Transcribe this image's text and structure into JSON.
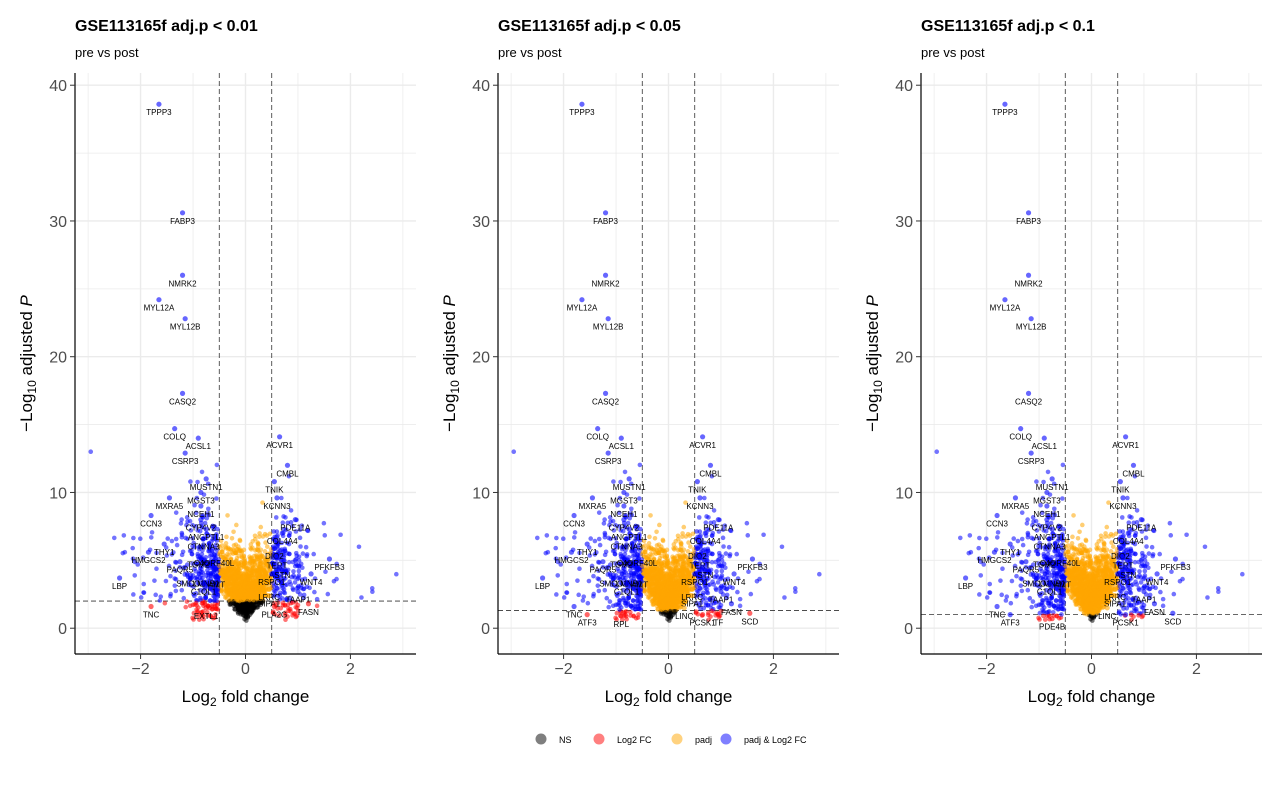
{
  "chart_data": [
    {
      "type": "scatter",
      "title": "GSE113165f adj.p < 0.01",
      "subtitle": "pre vs post",
      "xlabel": "Log2 fold change",
      "ylabel": "−Log10 adjusted P",
      "xlim": [
        -3.25,
        3.25
      ],
      "ylim": [
        -1.9,
        40.9
      ],
      "xticks": [
        -2,
        0,
        2
      ],
      "yticks": [
        0,
        10,
        20,
        30,
        40
      ],
      "fc_cutoff": 0.5,
      "p_cutoff_log10": 2.0,
      "grid": true,
      "labeled_genes": [
        {
          "gene": "TPPP3",
          "x": -1.65,
          "y": 38.6
        },
        {
          "gene": "FABP3",
          "x": -1.2,
          "y": 30.6
        },
        {
          "gene": "NMRK2",
          "x": -1.2,
          "y": 26.0
        },
        {
          "gene": "MYL12A",
          "x": -1.65,
          "y": 24.2
        },
        {
          "gene": "MYL12B",
          "x": -1.15,
          "y": 22.8
        },
        {
          "gene": "CASQ2",
          "x": -1.2,
          "y": 17.3
        },
        {
          "gene": "COLQ",
          "x": -1.35,
          "y": 14.7
        },
        {
          "gene": "ACSL1",
          "x": -0.9,
          "y": 14.0
        },
        {
          "gene": "CSRP3",
          "x": -1.15,
          "y": 12.9
        },
        {
          "gene": "MUSTN1",
          "x": -0.75,
          "y": 11.0
        },
        {
          "gene": "MGST3",
          "x": -0.85,
          "y": 10.0
        },
        {
          "gene": "MXRA5",
          "x": -1.45,
          "y": 9.6
        },
        {
          "gene": "NCEH1",
          "x": -0.85,
          "y": 9.0
        },
        {
          "gene": "CCN3",
          "x": -1.8,
          "y": 8.3
        },
        {
          "gene": "CYP4V2",
          "x": -0.85,
          "y": 8.0
        },
        {
          "gene": "ANGPTL1",
          "x": -0.75,
          "y": 7.3
        },
        {
          "gene": "CTNNA3",
          "x": -0.8,
          "y": 6.6
        },
        {
          "gene": "THY1",
          "x": -1.55,
          "y": 6.2
        },
        {
          "gene": "HMGCS2",
          "x": -1.85,
          "y": 5.6
        },
        {
          "gene": "TGM2",
          "x": -0.9,
          "y": 5.3
        },
        {
          "gene": "C4ORF40L",
          "x": -0.6,
          "y": 5.4
        },
        {
          "gene": "PAQR5",
          "x": -1.25,
          "y": 4.9
        },
        {
          "gene": "SMCO1",
          "x": -1.05,
          "y": 3.9
        },
        {
          "gene": "LMNB1",
          "x": -0.75,
          "y": 3.9
        },
        {
          "gene": "AMT",
          "x": -0.55,
          "y": 3.8
        },
        {
          "gene": "C1QL1",
          "x": -0.8,
          "y": 3.3
        },
        {
          "gene": "LBP",
          "x": -2.4,
          "y": 3.7
        },
        {
          "gene": "TNC",
          "x": -1.8,
          "y": 1.6
        },
        {
          "gene": "EXTL1",
          "x": -0.75,
          "y": 1.5
        },
        {
          "gene": "ACVR1",
          "x": 0.65,
          "y": 14.1
        },
        {
          "gene": "CMBL",
          "x": 0.8,
          "y": 12.0
        },
        {
          "gene": "TNIK",
          "x": 0.55,
          "y": 10.8
        },
        {
          "gene": "KCNN3",
          "x": 0.6,
          "y": 9.6
        },
        {
          "gene": "PDE11A",
          "x": 0.95,
          "y": 8.0
        },
        {
          "gene": "COL4A4",
          "x": 0.7,
          "y": 7.0
        },
        {
          "gene": "DIO2",
          "x": 0.55,
          "y": 5.9
        },
        {
          "gene": "TERT",
          "x": 0.6,
          "y": 5.2
        },
        {
          "gene": "ASTN",
          "x": 0.65,
          "y": 4.5
        },
        {
          "gene": "PFKFB3",
          "x": 1.6,
          "y": 5.1
        },
        {
          "gene": "WNT4",
          "x": 1.25,
          "y": 4.0
        },
        {
          "gene": "RSPO1",
          "x": 0.5,
          "y": 4.0
        },
        {
          "gene": "LRRC",
          "x": 0.45,
          "y": 2.9
        },
        {
          "gene": "SIPA1",
          "x": 0.45,
          "y": 2.4
        },
        {
          "gene": "TAAP1",
          "x": 1.0,
          "y": 2.7
        },
        {
          "gene": "FASN",
          "x": 1.2,
          "y": 1.8
        },
        {
          "gene": "PLA2G",
          "x": 0.55,
          "y": 1.6
        }
      ]
    },
    {
      "type": "scatter",
      "title": "GSE113165f adj.p < 0.05",
      "subtitle": "pre vs post",
      "xlabel": "Log2 fold change",
      "ylabel": "−Log10 adjusted P",
      "xlim": [
        -3.25,
        3.25
      ],
      "ylim": [
        -1.9,
        40.9
      ],
      "xticks": [
        -2,
        0,
        2
      ],
      "yticks": [
        0,
        10,
        20,
        30,
        40
      ],
      "fc_cutoff": 0.5,
      "p_cutoff_log10": 1.3,
      "grid": true,
      "labeled_genes": [
        {
          "gene": "TPPP3",
          "x": -1.65,
          "y": 38.6
        },
        {
          "gene": "FABP3",
          "x": -1.2,
          "y": 30.6
        },
        {
          "gene": "NMRK2",
          "x": -1.2,
          "y": 26.0
        },
        {
          "gene": "MYL12A",
          "x": -1.65,
          "y": 24.2
        },
        {
          "gene": "MYL12B",
          "x": -1.15,
          "y": 22.8
        },
        {
          "gene": "CASQ2",
          "x": -1.2,
          "y": 17.3
        },
        {
          "gene": "COLQ",
          "x": -1.35,
          "y": 14.7
        },
        {
          "gene": "ACSL1",
          "x": -0.9,
          "y": 14.0
        },
        {
          "gene": "CSRP3",
          "x": -1.15,
          "y": 12.9
        },
        {
          "gene": "MUSTN1",
          "x": -0.75,
          "y": 11.0
        },
        {
          "gene": "MGST3",
          "x": -0.85,
          "y": 10.0
        },
        {
          "gene": "MXRA5",
          "x": -1.45,
          "y": 9.6
        },
        {
          "gene": "NCEH1",
          "x": -0.85,
          "y": 9.0
        },
        {
          "gene": "CCN3",
          "x": -1.8,
          "y": 8.3
        },
        {
          "gene": "CYP4V2",
          "x": -0.85,
          "y": 8.0
        },
        {
          "gene": "ANGPTL1",
          "x": -0.75,
          "y": 7.3
        },
        {
          "gene": "CTNNA3",
          "x": -0.8,
          "y": 6.6
        },
        {
          "gene": "THY1",
          "x": -1.55,
          "y": 6.2
        },
        {
          "gene": "HMGCS2",
          "x": -1.85,
          "y": 5.6
        },
        {
          "gene": "TGM2",
          "x": -0.9,
          "y": 5.3
        },
        {
          "gene": "C4ORF40L",
          "x": -0.6,
          "y": 5.4
        },
        {
          "gene": "PAQR5",
          "x": -1.25,
          "y": 4.9
        },
        {
          "gene": "SMCO1",
          "x": -1.05,
          "y": 3.9
        },
        {
          "gene": "LMNB1",
          "x": -0.75,
          "y": 3.9
        },
        {
          "gene": "AMT",
          "x": -0.55,
          "y": 3.8
        },
        {
          "gene": "C1QL1",
          "x": -0.8,
          "y": 3.3
        },
        {
          "gene": "LBP",
          "x": -2.4,
          "y": 3.7
        },
        {
          "gene": "TNC",
          "x": -1.8,
          "y": 1.6
        },
        {
          "gene": "ATF3",
          "x": -1.55,
          "y": 1.0
        },
        {
          "gene": "RPL",
          "x": -0.9,
          "y": 0.9
        },
        {
          "gene": "ACVR1",
          "x": 0.65,
          "y": 14.1
        },
        {
          "gene": "CMBL",
          "x": 0.8,
          "y": 12.0
        },
        {
          "gene": "TNIK",
          "x": 0.55,
          "y": 10.8
        },
        {
          "gene": "KCNN3",
          "x": 0.6,
          "y": 9.6
        },
        {
          "gene": "PDE11A",
          "x": 0.95,
          "y": 8.0
        },
        {
          "gene": "COL4A4",
          "x": 0.7,
          "y": 7.0
        },
        {
          "gene": "DIO2",
          "x": 0.55,
          "y": 5.9
        },
        {
          "gene": "TERT",
          "x": 0.6,
          "y": 5.2
        },
        {
          "gene": "ASTN",
          "x": 0.65,
          "y": 4.5
        },
        {
          "gene": "PFKFB3",
          "x": 1.6,
          "y": 5.1
        },
        {
          "gene": "WNT4",
          "x": 1.25,
          "y": 4.0
        },
        {
          "gene": "RSPO1",
          "x": 0.5,
          "y": 4.0
        },
        {
          "gene": "LRRC",
          "x": 0.45,
          "y": 2.9
        },
        {
          "gene": "SIPA1",
          "x": 0.45,
          "y": 2.4
        },
        {
          "gene": "TAAP1",
          "x": 1.0,
          "y": 2.7
        },
        {
          "gene": "FASN",
          "x": 1.2,
          "y": 1.8
        },
        {
          "gene": "LINC",
          "x": 0.3,
          "y": 1.5
        },
        {
          "gene": "PCSK1",
          "x": 0.65,
          "y": 1.0
        },
        {
          "gene": "TF",
          "x": 0.95,
          "y": 1.0
        },
        {
          "gene": "SCD",
          "x": 1.55,
          "y": 1.1
        }
      ]
    },
    {
      "type": "scatter",
      "title": "GSE113165f adj.p < 0.1",
      "subtitle": "pre vs post",
      "xlabel": "Log2 fold change",
      "ylabel": "−Log10 adjusted P",
      "xlim": [
        -3.25,
        3.25
      ],
      "ylim": [
        -1.9,
        40.9
      ],
      "xticks": [
        -2,
        0,
        2
      ],
      "yticks": [
        0,
        10,
        20,
        30,
        40
      ],
      "fc_cutoff": 0.5,
      "p_cutoff_log10": 1.0,
      "grid": true,
      "labeled_genes": [
        {
          "gene": "TPPP3",
          "x": -1.65,
          "y": 38.6
        },
        {
          "gene": "FABP3",
          "x": -1.2,
          "y": 30.6
        },
        {
          "gene": "NMRK2",
          "x": -1.2,
          "y": 26.0
        },
        {
          "gene": "MYL12A",
          "x": -1.65,
          "y": 24.2
        },
        {
          "gene": "MYL12B",
          "x": -1.15,
          "y": 22.8
        },
        {
          "gene": "CASQ2",
          "x": -1.2,
          "y": 17.3
        },
        {
          "gene": "COLQ",
          "x": -1.35,
          "y": 14.7
        },
        {
          "gene": "ACSL1",
          "x": -0.9,
          "y": 14.0
        },
        {
          "gene": "CSRP3",
          "x": -1.15,
          "y": 12.9
        },
        {
          "gene": "MUSTN1",
          "x": -0.75,
          "y": 11.0
        },
        {
          "gene": "MGST3",
          "x": -0.85,
          "y": 10.0
        },
        {
          "gene": "MXRA5",
          "x": -1.45,
          "y": 9.6
        },
        {
          "gene": "NCEH1",
          "x": -0.85,
          "y": 9.0
        },
        {
          "gene": "CCN3",
          "x": -1.8,
          "y": 8.3
        },
        {
          "gene": "CYP4V2",
          "x": -0.85,
          "y": 8.0
        },
        {
          "gene": "ANGPTL1",
          "x": -0.75,
          "y": 7.3
        },
        {
          "gene": "CTNNA3",
          "x": -0.8,
          "y": 6.6
        },
        {
          "gene": "THY1",
          "x": -1.55,
          "y": 6.2
        },
        {
          "gene": "HMGCS2",
          "x": -1.85,
          "y": 5.6
        },
        {
          "gene": "TGM2",
          "x": -0.9,
          "y": 5.3
        },
        {
          "gene": "C4ORF40L",
          "x": -0.6,
          "y": 5.4
        },
        {
          "gene": "PAQR5",
          "x": -1.25,
          "y": 4.9
        },
        {
          "gene": "SMCO1",
          "x": -1.05,
          "y": 3.9
        },
        {
          "gene": "LMNB1",
          "x": -0.75,
          "y": 3.9
        },
        {
          "gene": "AMT",
          "x": -0.55,
          "y": 3.8
        },
        {
          "gene": "C1QL1",
          "x": -0.8,
          "y": 3.3
        },
        {
          "gene": "LBP",
          "x": -2.4,
          "y": 3.7
        },
        {
          "gene": "TNC",
          "x": -1.8,
          "y": 1.6
        },
        {
          "gene": "ATF3",
          "x": -1.55,
          "y": 1.0
        },
        {
          "gene": "PDE4B",
          "x": -0.75,
          "y": 0.7
        },
        {
          "gene": "ACVR1",
          "x": 0.65,
          "y": 14.1
        },
        {
          "gene": "CMBL",
          "x": 0.8,
          "y": 12.0
        },
        {
          "gene": "TNIK",
          "x": 0.55,
          "y": 10.8
        },
        {
          "gene": "KCNN3",
          "x": 0.6,
          "y": 9.6
        },
        {
          "gene": "PDE11A",
          "x": 0.95,
          "y": 8.0
        },
        {
          "gene": "COL4A4",
          "x": 0.7,
          "y": 7.0
        },
        {
          "gene": "DIO2",
          "x": 0.55,
          "y": 5.9
        },
        {
          "gene": "TERT",
          "x": 0.6,
          "y": 5.2
        },
        {
          "gene": "ASTN",
          "x": 0.65,
          "y": 4.5
        },
        {
          "gene": "PFKFB3",
          "x": 1.6,
          "y": 5.1
        },
        {
          "gene": "WNT4",
          "x": 1.25,
          "y": 4.0
        },
        {
          "gene": "RSPO1",
          "x": 0.5,
          "y": 4.0
        },
        {
          "gene": "LRRC",
          "x": 0.45,
          "y": 2.9
        },
        {
          "gene": "SIPA1",
          "x": 0.45,
          "y": 2.4
        },
        {
          "gene": "TAAP1",
          "x": 1.0,
          "y": 2.7
        },
        {
          "gene": "FASN",
          "x": 1.2,
          "y": 1.8
        },
        {
          "gene": "LINC",
          "x": 0.3,
          "y": 1.5
        },
        {
          "gene": "PCSK1",
          "x": 0.65,
          "y": 1.0
        },
        {
          "gene": "SCD",
          "x": 1.55,
          "y": 1.1
        }
      ]
    }
  ],
  "legend": {
    "items": [
      {
        "label": "NS",
        "color": "#000000"
      },
      {
        "label": "Log2 FC",
        "color": "#ff0000"
      },
      {
        "label": "padj",
        "color": "#ffa500"
      },
      {
        "label": "padj & Log2 FC",
        "color": "#0000ff"
      }
    ]
  }
}
